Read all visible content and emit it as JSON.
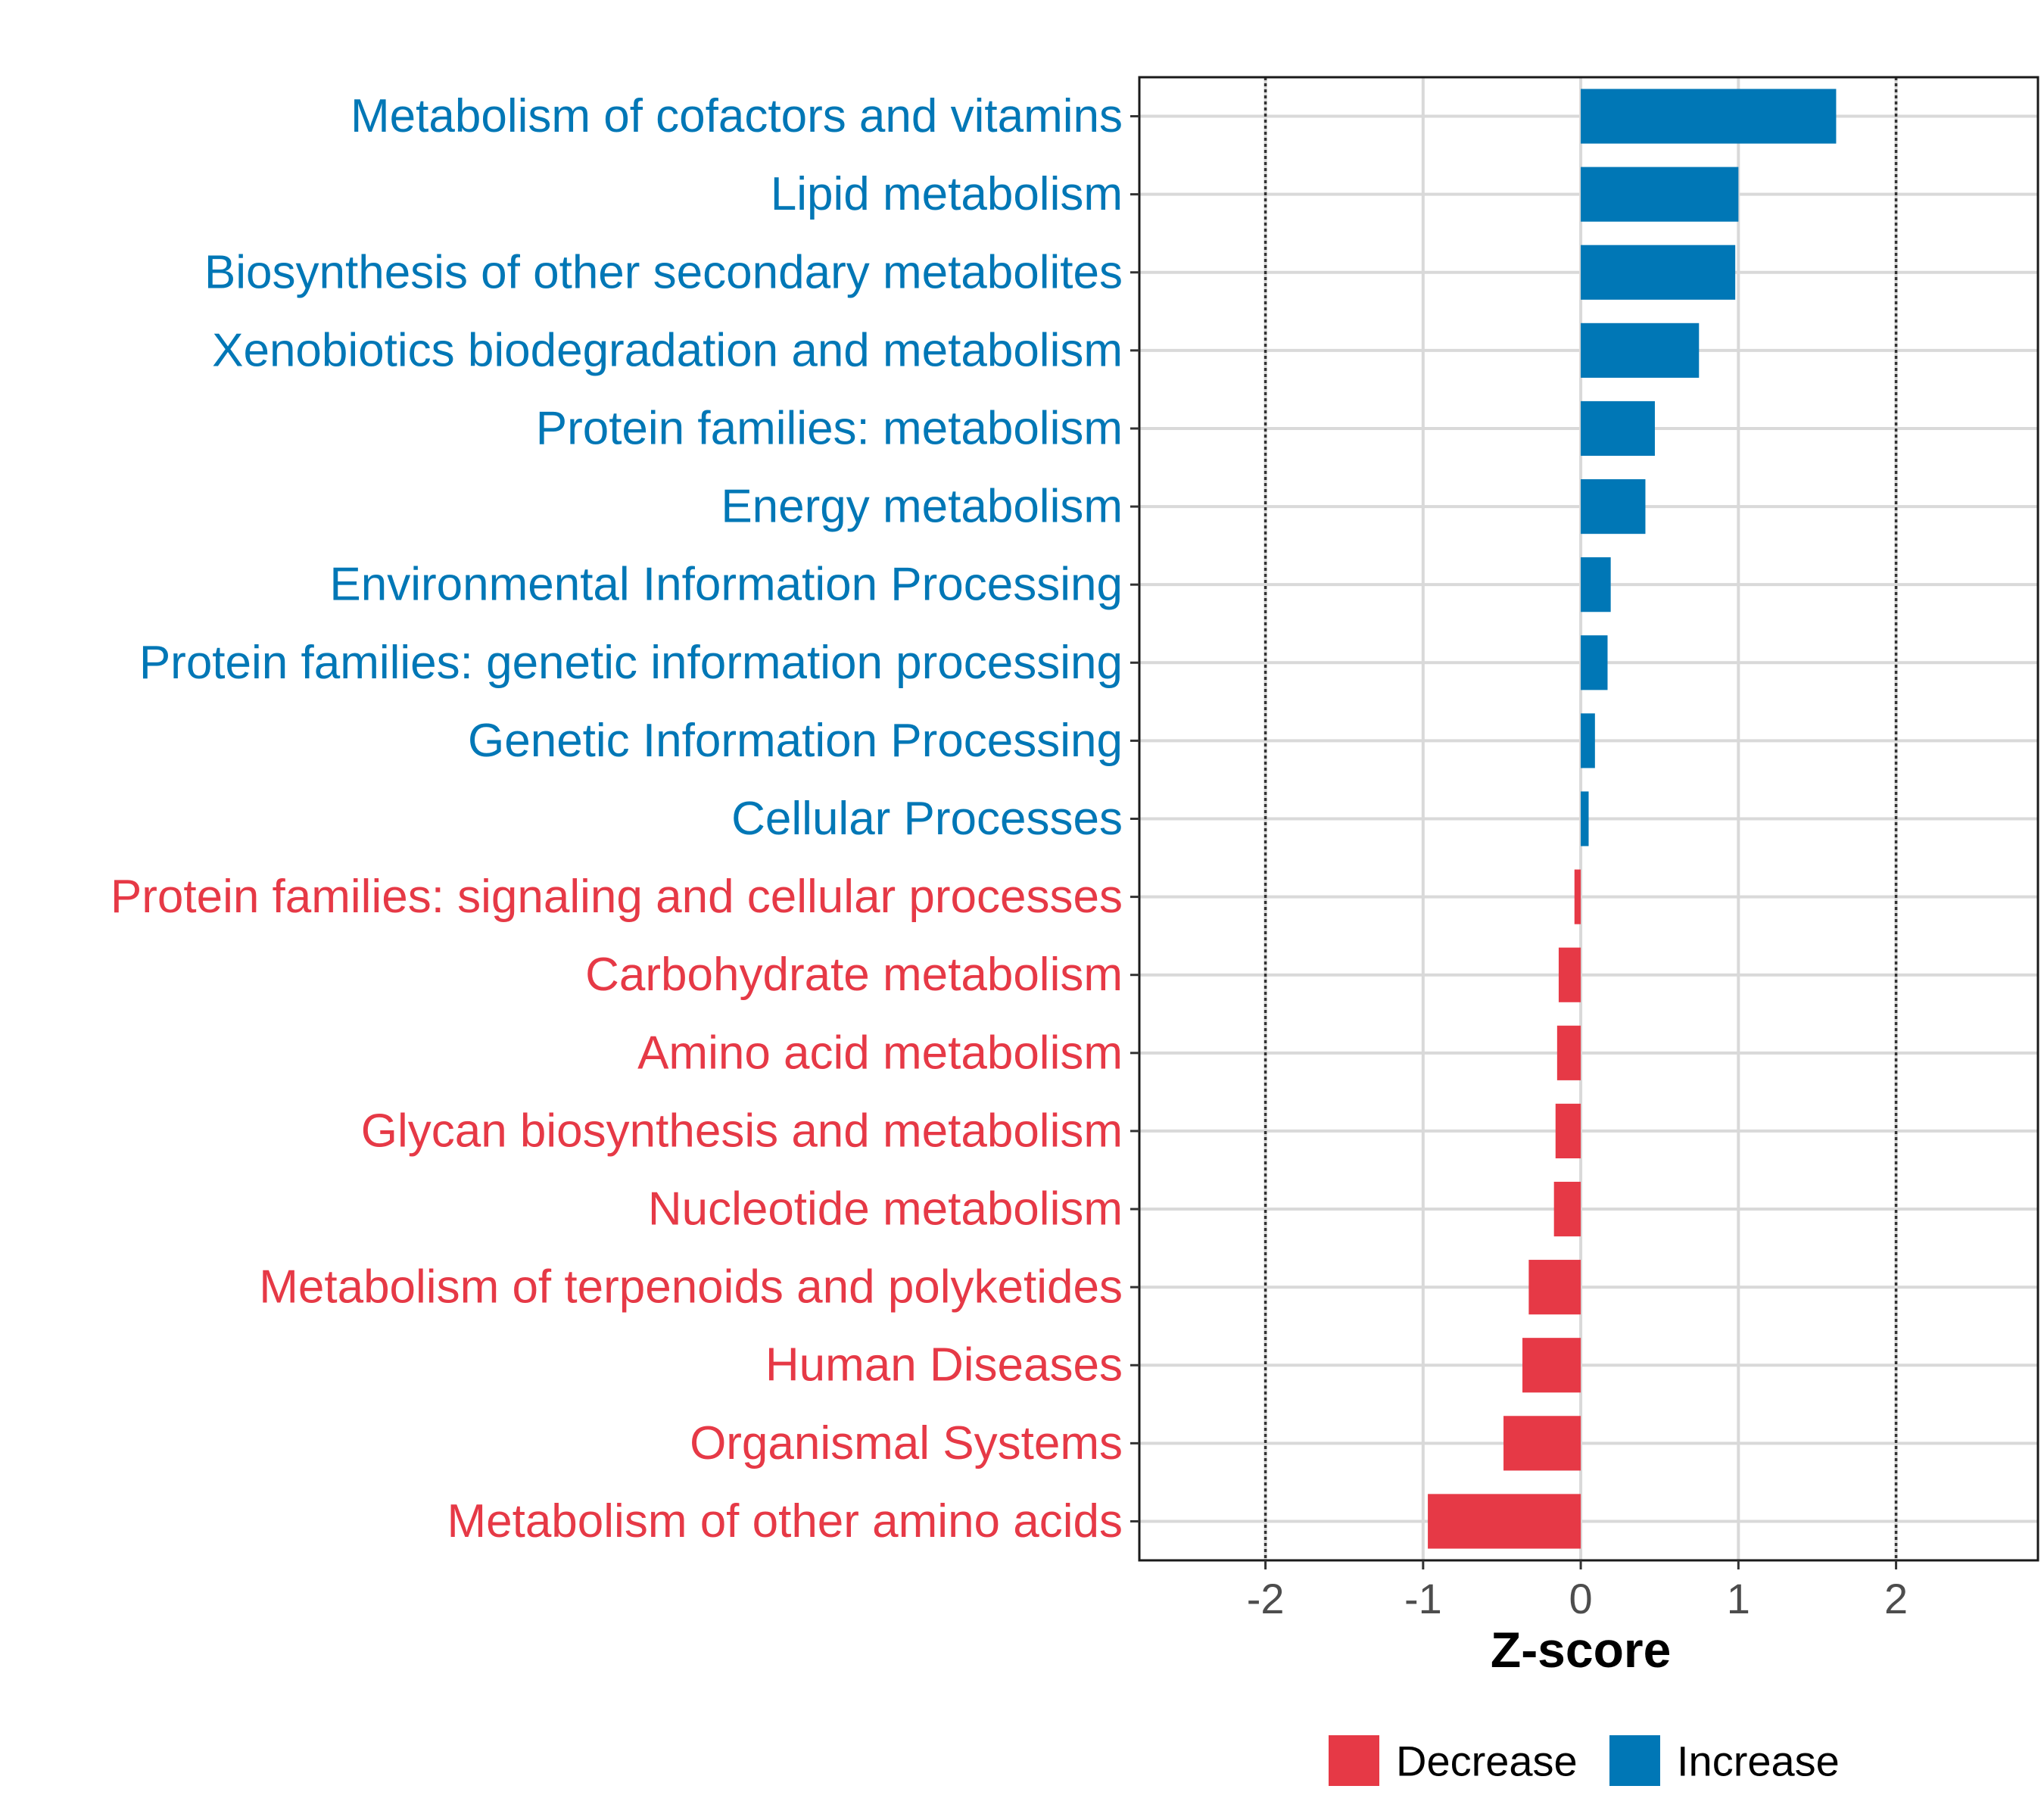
{
  "chart_data": {
    "type": "bar",
    "orientation": "horizontal",
    "xlabel": "Z-score",
    "xlim": [
      -2.8,
      2.9
    ],
    "xticks": [
      -2,
      -1,
      0,
      1,
      2
    ],
    "xtick_labels": [
      "-2",
      "-1",
      "0",
      "1",
      "2"
    ],
    "reference_lines": [
      -2,
      2
    ],
    "grid": true,
    "legend_position": "bottom",
    "colors": {
      "Decrease": "#e63946",
      "Increase": "#0077b6"
    },
    "legend": [
      {
        "key": "Decrease",
        "label": "Decrease"
      },
      {
        "key": "Increase",
        "label": "Increase"
      }
    ],
    "categories": [
      "Metabolism of cofactors and vitamins",
      "Lipid metabolism",
      "Biosynthesis of other secondary metabolites",
      "Xenobiotics biodegradation and metabolism",
      "Protein families: metabolism",
      "Energy metabolism",
      "Environmental Information Processing",
      "Protein families: genetic information processing",
      "Genetic Information Processing",
      "Cellular Processes",
      "Protein families: signaling and cellular processes",
      "Carbohydrate metabolism",
      "Amino acid metabolism",
      "Glycan biosynthesis and metabolism",
      "Nucleotide metabolism",
      "Metabolism of terpenoids and polyketides",
      "Human Diseases",
      "Organismal Systems",
      "Metabolism of other amino acids"
    ],
    "values": [
      1.62,
      1.0,
      0.98,
      0.75,
      0.47,
      0.41,
      0.19,
      0.17,
      0.09,
      0.05,
      -0.04,
      -0.14,
      -0.15,
      -0.16,
      -0.17,
      -0.33,
      -0.37,
      -0.49,
      -0.97
    ],
    "groups": [
      "Increase",
      "Increase",
      "Increase",
      "Increase",
      "Increase",
      "Increase",
      "Increase",
      "Increase",
      "Increase",
      "Increase",
      "Decrease",
      "Decrease",
      "Decrease",
      "Decrease",
      "Decrease",
      "Decrease",
      "Decrease",
      "Decrease",
      "Decrease"
    ]
  }
}
